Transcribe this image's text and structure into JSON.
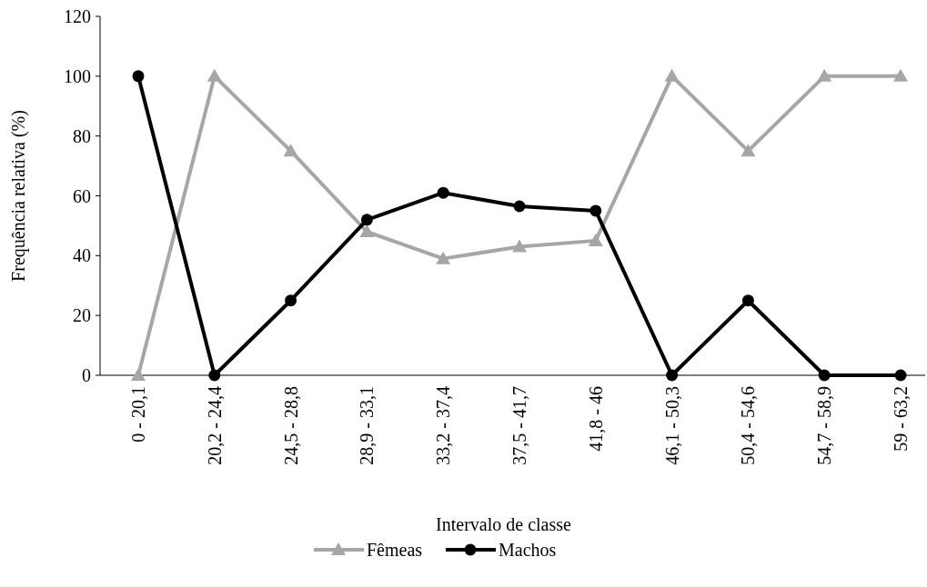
{
  "chart_data": {
    "type": "line",
    "xlabel": "Intervalo de classe",
    "ylabel": "Frequência relativa (%)",
    "categories": [
      "0 - 20,1",
      "20,2 - 24,4",
      "24,5 - 28,8",
      "28,9 - 33,1",
      "33,2 - 37,4",
      "37,5 - 41,7",
      "41,8 - 46",
      "46,1 - 50,3",
      "50,4 - 54,6",
      "54,7 - 58,9",
      "59 - 63,2"
    ],
    "series": [
      {
        "name": "Fêmeas",
        "color": "#a6a6a6",
        "marker": "triangle",
        "values": [
          0,
          100,
          75,
          48,
          39,
          43,
          45,
          100,
          75,
          100,
          100
        ]
      },
      {
        "name": "Machos",
        "color": "#000000",
        "marker": "circle",
        "values": [
          100,
          0,
          25,
          52,
          61,
          56.5,
          55,
          0,
          25,
          0,
          0
        ]
      }
    ],
    "ylim": [
      0,
      120
    ],
    "yticks": [
      0,
      20,
      40,
      60,
      80,
      100,
      120
    ],
    "grid": false,
    "legend": "bottom",
    "line_style": "solid"
  }
}
